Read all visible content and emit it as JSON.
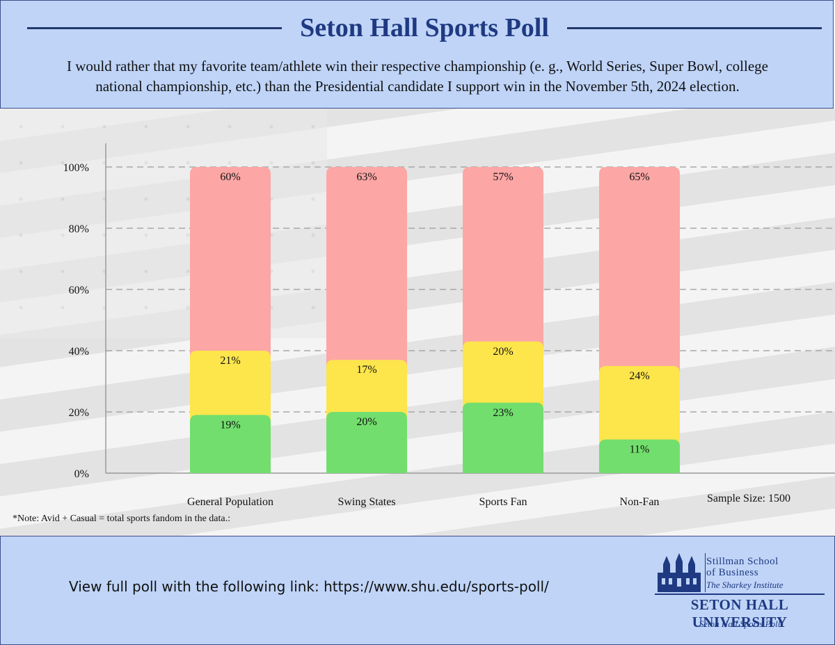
{
  "header": {
    "title": "Seton Hall Sports Poll",
    "question_line1": "I would rather that my favorite team/athlete win their respective championship (e. g., World Series, Super Bowl, college",
    "question_line2": "national championship, etc.) than the Presidential candidate I support win in the November 5th, 2024 election."
  },
  "chart_data": {
    "type": "bar",
    "stacked": true,
    "categories": [
      "General Population",
      "Swing States",
      "Sports Fan",
      "Non-Fan"
    ],
    "series": [
      {
        "values": [
          19,
          20,
          23,
          11
        ],
        "color": "#72de6d"
      },
      {
        "values": [
          21,
          17,
          20,
          24
        ],
        "color": "#fde54c"
      },
      {
        "values": [
          60,
          63,
          57,
          65
        ],
        "color": "#fca6a5"
      }
    ],
    "value_labels": [
      [
        "19%",
        "20%",
        "23%",
        "11%"
      ],
      [
        "21%",
        "17%",
        "20%",
        "24%"
      ],
      [
        "60%",
        "63%",
        "57%",
        "65%"
      ]
    ],
    "yticks": [
      "0%",
      "20%",
      "40%",
      "60%",
      "80%",
      "100%"
    ],
    "ylim": [
      0,
      100
    ],
    "grid": true,
    "legend": "none"
  },
  "sample_size": "Sample Size: 1500",
  "note": "*Note: Avid + Casual = total sports fandom in the data.:",
  "footer": {
    "link_text": "View full poll with the following link: https://www.shu.edu/sports-poll/",
    "logo": {
      "school_line1": "Stillman School",
      "school_line2": "of Business",
      "institute": "The Sharkey Institute",
      "university": "SETON HALL UNIVERSITY",
      "poll": "Seton Hall Sports Poll"
    }
  }
}
